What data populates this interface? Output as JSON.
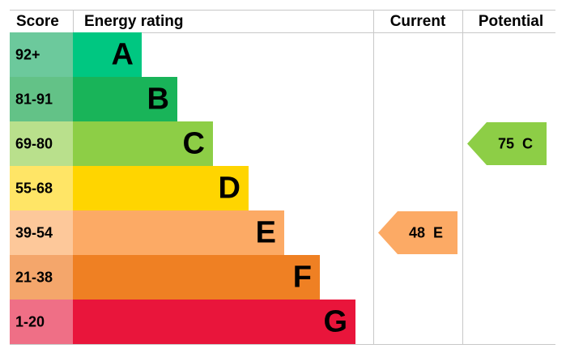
{
  "headers": {
    "score": "Score",
    "rating": "Energy rating",
    "current": "Current",
    "potential": "Potential"
  },
  "bands": [
    {
      "score": "92+",
      "letter": "A",
      "color": "#00c781",
      "score_color": "#6cc99c"
    },
    {
      "score": "81-91",
      "letter": "B",
      "color": "#19b459",
      "score_color": "#63c287"
    },
    {
      "score": "69-80",
      "letter": "C",
      "color": "#8dce46",
      "score_color": "#b9e08c"
    },
    {
      "score": "55-68",
      "letter": "D",
      "color": "#ffd500",
      "score_color": "#ffe566"
    },
    {
      "score": "39-54",
      "letter": "E",
      "color": "#fcaa65",
      "score_color": "#fdc89a"
    },
    {
      "score": "21-38",
      "letter": "F",
      "color": "#ef8023",
      "score_color": "#f4a66b"
    },
    {
      "score": "1-20",
      "letter": "G",
      "color": "#e9153b",
      "score_color": "#ef6f86"
    }
  ],
  "current": {
    "value": 48,
    "letter": "E"
  },
  "potential": {
    "value": 75,
    "letter": "C"
  }
}
